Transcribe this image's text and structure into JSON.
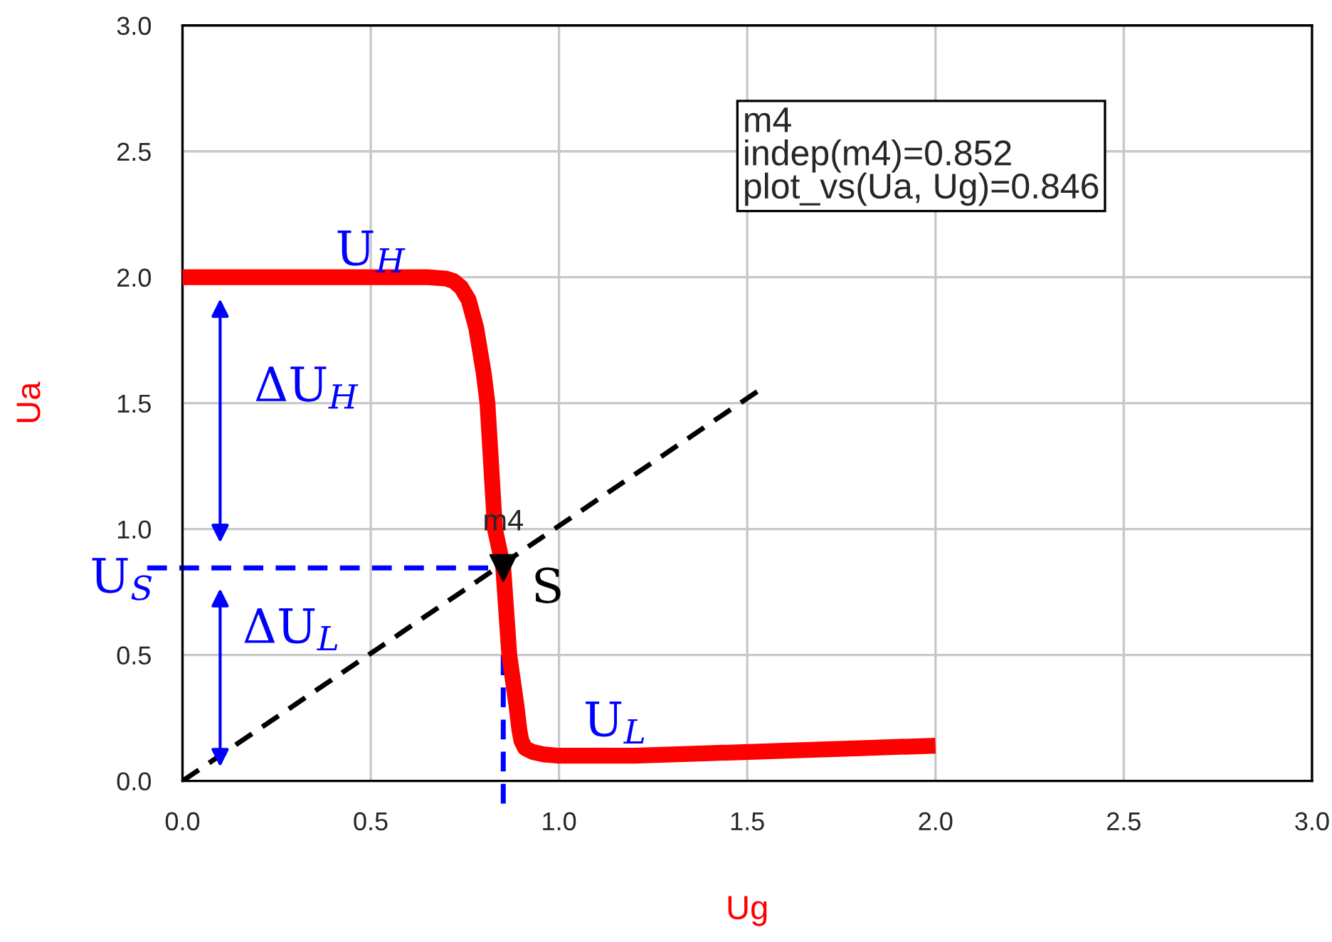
{
  "chart_data": {
    "type": "line",
    "xlabel": "Ug",
    "ylabel": "Ua",
    "series": [
      {
        "color": "#ff0000",
        "x": [
          0,
          0.1,
          0.2,
          0.3,
          0.4,
          0.5,
          0.6,
          0.65,
          0.7,
          0.72,
          0.74,
          0.76,
          0.78,
          0.8,
          0.81,
          0.83,
          0.852,
          0.868,
          0.887,
          0.895,
          0.9,
          0.91,
          0.93,
          0.96,
          1.0,
          1.1,
          1.2,
          1.4,
          1.6,
          1.8,
          2.0
        ],
        "values": [
          2.0,
          2.0,
          2.0,
          2.0,
          2.0,
          2.0,
          2.0,
          2.0,
          1.995,
          1.985,
          1.96,
          1.91,
          1.8,
          1.62,
          1.5,
          1.0,
          0.846,
          0.5,
          0.3,
          0.2,
          0.16,
          0.13,
          0.115,
          0.105,
          0.1,
          0.1,
          0.1,
          0.11,
          0.12,
          0.13,
          0.14
        ]
      },
      {
        "color": "#000000",
        "line_style": "dashed",
        "x": [
          0,
          1.54
        ],
        "values": [
          0,
          1.56
        ]
      },
      {
        "type": "scatter",
        "name": "m4",
        "color": "#000000",
        "marker": "triangle",
        "x": [
          0.852
        ],
        "values": [
          0.846
        ]
      }
    ],
    "ref_lines": [
      {
        "axis": "y",
        "value": 0.846,
        "color": "#0000ff",
        "line_style": "dashed"
      },
      {
        "axis": "x",
        "value": 0.852,
        "color": "#0000ff",
        "line_style": "dashed"
      }
    ],
    "annotations": [
      "U$_{H}$",
      "ΔU$_{H}$",
      "U$_{S}$",
      "ΔU$_{L}$",
      "S",
      "U$_{L}$",
      "m4\nindep(m4)=0.852\nplot_vs(Ua, Ug)=0.846"
    ],
    "xlim": [
      0,
      3
    ],
    "ylim": [
      0,
      3
    ],
    "xticks": [
      {
        "value": 0,
        "label": "0.0"
      },
      {
        "value": 0.5,
        "label": "0.5"
      },
      {
        "value": 1,
        "label": "1.0"
      },
      {
        "value": 1.5,
        "label": "1.5"
      },
      {
        "value": 2,
        "label": "2.0"
      },
      {
        "value": 2.5,
        "label": "2.5"
      },
      {
        "value": 3,
        "label": "3.0"
      }
    ],
    "yticks": [
      {
        "value": 0,
        "label": "0.0"
      },
      {
        "value": 0.5,
        "label": "0.5"
      },
      {
        "value": 1,
        "label": "1.0"
      },
      {
        "value": 1.5,
        "label": "1.5"
      },
      {
        "value": 2,
        "label": "2.0"
      },
      {
        "value": 2.5,
        "label": "2.5"
      },
      {
        "value": 3,
        "label": "3.0"
      }
    ],
    "grid": true,
    "legend": false
  }
}
